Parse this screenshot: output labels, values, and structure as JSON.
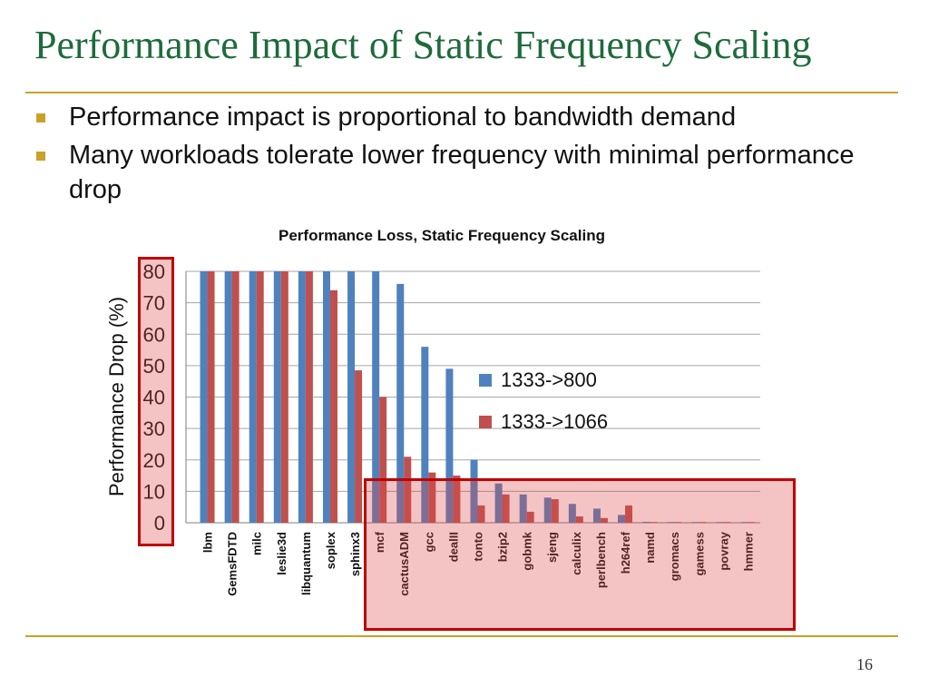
{
  "slide": {
    "title": "Performance Impact of Static Frequency Scaling",
    "bullets": [
      "Performance impact is proportional to bandwidth demand",
      "Many workloads tolerate lower frequency with minimal performance drop"
    ],
    "page_number": "16"
  },
  "colors": {
    "title": "#1e6b3c",
    "rule": "#c9a227",
    "series_blue": "#4f81bd",
    "series_red": "#c0504d",
    "highlight": "#c00000"
  },
  "chart_data": {
    "type": "bar",
    "title": "Performance Loss, Static Frequency Scaling",
    "ylabel": "Performance Drop (%)",
    "xlabel": "",
    "ylim": [
      0,
      80
    ],
    "yticks": [
      "0",
      "10",
      "20",
      "30",
      "40",
      "50",
      "60",
      "70",
      "80"
    ],
    "grid": true,
    "legend_position": "right",
    "categories": [
      "lbm",
      "GemsFDTD",
      "milc",
      "leslie3d",
      "libquantum",
      "soplex",
      "sphinx3",
      "mcf",
      "cactusADM",
      "gcc",
      "dealII",
      "tonto",
      "bzip2",
      "gobmk",
      "sjeng",
      "calculix",
      "perlbench",
      "h264ref",
      "namd",
      "gromacs",
      "gamess",
      "povray",
      "hmmer"
    ],
    "series": [
      {
        "name": "1333->800",
        "color": "#4f81bd",
        "values": [
          80,
          80,
          80,
          80,
          80,
          80,
          80,
          80,
          76,
          56,
          49,
          20,
          12.5,
          9,
          8,
          6,
          4.5,
          2.5,
          0.3,
          0.2,
          0.2,
          0.2,
          0.2
        ]
      },
      {
        "name": "1333->1066",
        "color": "#c0504d",
        "values": [
          80,
          80,
          80,
          80,
          80,
          74,
          48.5,
          40,
          21,
          16,
          15,
          5.5,
          9,
          3.5,
          7.5,
          2,
          1.5,
          5.5,
          0.1,
          0.1,
          0.1,
          0.1,
          0.1
        ]
      }
    ]
  }
}
